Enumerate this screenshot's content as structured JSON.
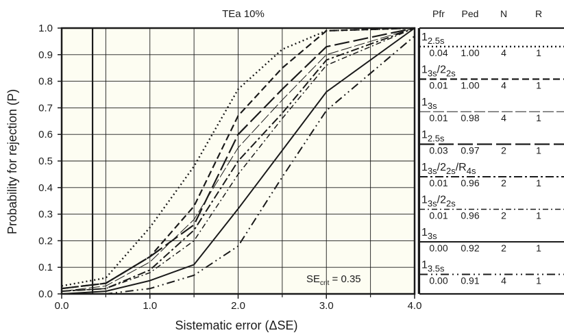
{
  "chart_data": {
    "type": "line",
    "title": "TEa 10%",
    "xlabel": "Sistematic error (ΔSE)",
    "ylabel": "Probability for rejection (P)",
    "xlim": [
      0,
      4
    ],
    "ylim": [
      0,
      1
    ],
    "x_ticks": [
      "0.0",
      "1.0",
      "2.0",
      "3.0",
      "4.0"
    ],
    "y_ticks": [
      "0.0",
      "0.1",
      "0.2",
      "0.3",
      "0.4",
      "0.5",
      "0.6",
      "0.7",
      "0.8",
      "0.9",
      "1.0"
    ],
    "grid": true,
    "annotation": {
      "main": "SE",
      "sub": "crit",
      "rest": " = 0.35",
      "x": 0.35
    },
    "legend": {
      "position": "right",
      "headers": [
        "Pfr",
        "Ped",
        "N",
        "R"
      ],
      "entries": [
        {
          "rule": {
            "parts": [
              [
                "1",
                ""
              ],
              [
                "2.5s",
                "sub"
              ]
            ]
          },
          "pfr": "0.04",
          "ped": "1.00",
          "n": "4",
          "r": "1",
          "style": "dot"
        },
        {
          "rule": {
            "parts": [
              [
                "1",
                ""
              ],
              [
                "3s",
                "sub"
              ],
              [
                "/2",
                ""
              ],
              [
                "2s",
                "sub"
              ]
            ]
          },
          "pfr": "0.01",
          "ped": "1.00",
          "n": "4",
          "r": "1",
          "style": "dash"
        },
        {
          "rule": {
            "parts": [
              [
                "1",
                ""
              ],
              [
                "3s",
                "sub"
              ]
            ]
          },
          "pfr": "0.01",
          "ped": "0.98",
          "n": "4",
          "r": "1",
          "style": "thin"
        },
        {
          "rule": {
            "parts": [
              [
                "1",
                ""
              ],
              [
                "2.5s",
                "sub"
              ]
            ]
          },
          "pfr": "0.03",
          "ped": "0.97",
          "n": "2",
          "r": "1",
          "style": "longdash"
        },
        {
          "rule": {
            "parts": [
              [
                "1",
                ""
              ],
              [
                "3s",
                "sub"
              ],
              [
                "/2",
                ""
              ],
              [
                "2s",
                "sub"
              ],
              [
                "/R",
                ""
              ],
              [
                "4s",
                "sub"
              ]
            ]
          },
          "pfr": "0.01",
          "ped": "0.96",
          "n": "2",
          "r": "1",
          "style": "dashdot"
        },
        {
          "rule": {
            "parts": [
              [
                "1",
                ""
              ],
              [
                "3s",
                "sub"
              ],
              [
                "/2",
                ""
              ],
              [
                "2s",
                "sub"
              ]
            ]
          },
          "pfr": "0.01",
          "ped": "0.96",
          "n": "2",
          "r": "1",
          "style": "dashdot2"
        },
        {
          "rule": {
            "parts": [
              [
                "1",
                ""
              ],
              [
                "3s",
                "sub"
              ]
            ]
          },
          "pfr": "0.00",
          "ped": "0.92",
          "n": "2",
          "r": "1",
          "style": "solid"
        },
        {
          "rule": {
            "parts": [
              [
                "1",
                ""
              ],
              [
                "3.5s",
                "sub"
              ]
            ]
          },
          "pfr": "0.00",
          "ped": "0.91",
          "n": "4",
          "r": "1",
          "style": "dashdotdot"
        }
      ]
    },
    "series": [
      {
        "style": "dot",
        "x": [
          0,
          0.5,
          1.0,
          1.5,
          2.0,
          2.5,
          3.0,
          4.0
        ],
        "y": [
          0.03,
          0.06,
          0.25,
          0.48,
          0.77,
          0.92,
          0.99,
          1.0
        ]
      },
      {
        "style": "dash",
        "x": [
          0,
          0.5,
          1.0,
          1.5,
          2.0,
          2.5,
          3.0,
          4.0
        ],
        "y": [
          0.02,
          0.04,
          0.14,
          0.33,
          0.67,
          0.85,
          0.99,
          1.0
        ]
      },
      {
        "style": "thin",
        "x": [
          0,
          0.5,
          1.0,
          1.5,
          2.0,
          2.5,
          3.0,
          4.0
        ],
        "y": [
          0.01,
          0.03,
          0.12,
          0.28,
          0.55,
          0.73,
          0.9,
          1.0
        ]
      },
      {
        "style": "longdash",
        "x": [
          0,
          0.5,
          1.0,
          1.5,
          2.0,
          2.5,
          3.0,
          4.0
        ],
        "y": [
          0.02,
          0.04,
          0.14,
          0.26,
          0.6,
          0.77,
          0.93,
          1.0
        ]
      },
      {
        "style": "dashdot",
        "x": [
          0,
          0.5,
          1.0,
          1.5,
          2.0,
          2.5,
          3.0,
          4.0
        ],
        "y": [
          0.01,
          0.02,
          0.09,
          0.24,
          0.5,
          0.68,
          0.88,
          1.0
        ]
      },
      {
        "style": "dashdot2",
        "x": [
          0,
          0.5,
          1.0,
          1.5,
          2.0,
          2.5,
          3.0,
          4.0
        ],
        "y": [
          0.01,
          0.02,
          0.08,
          0.2,
          0.45,
          0.66,
          0.86,
          1.0
        ]
      },
      {
        "style": "solid",
        "x": [
          0,
          0.5,
          1.0,
          1.5,
          2.0,
          2.5,
          3.0,
          4.0
        ],
        "y": [
          0.0,
          0.01,
          0.05,
          0.11,
          0.32,
          0.54,
          0.76,
          1.0
        ]
      },
      {
        "style": "dashdotdot",
        "x": [
          0,
          0.5,
          1.0,
          1.5,
          2.0,
          2.5,
          3.0,
          4.0
        ],
        "y": [
          0.0,
          0.0,
          0.02,
          0.07,
          0.18,
          0.44,
          0.69,
          0.97
        ]
      }
    ],
    "colors": {
      "plot_bg": "#fdfdf2",
      "line": "#1a1a1a",
      "grid": "#1a1a1a"
    }
  }
}
